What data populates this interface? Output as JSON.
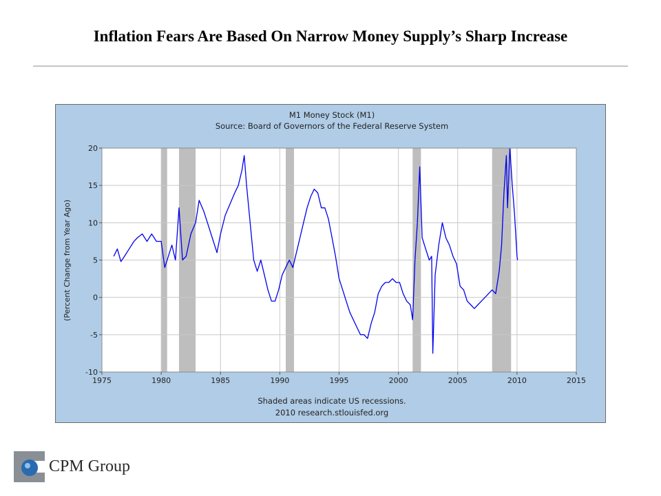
{
  "page": {
    "title": "Inflation Fears Are Based On Narrow Money Supply’s Sharp Increase",
    "logo_text": "CPM Group"
  },
  "colors": {
    "frame_bg": "#b0cce6",
    "plot_bg": "#ffffff",
    "series": "#0000ee",
    "recession": "#bebebe",
    "grid": "#c8c8c8"
  },
  "chart_data": {
    "type": "line",
    "title": "M1 Money Stock (M1)",
    "subtitle": "Source: Board of Governors of the Federal Reserve System",
    "xlabel": "",
    "ylabel": "(Percent Change from Year Ago)",
    "xlim": [
      1975,
      2015
    ],
    "ylim": [
      -10,
      20
    ],
    "x_ticks": [
      1975,
      1980,
      1985,
      1990,
      1995,
      2000,
      2005,
      2010,
      2015
    ],
    "y_ticks": [
      -10,
      -5,
      0,
      5,
      10,
      15,
      20
    ],
    "grid": true,
    "footnote": [
      "Shaded areas indicate US recessions.",
      "2010 research.stlouisfed.org"
    ],
    "recessions": [
      [
        1980.0,
        1980.5
      ],
      [
        1981.5,
        1982.9
      ],
      [
        1990.5,
        1991.2
      ],
      [
        2001.2,
        2001.9
      ],
      [
        2007.9,
        2009.5
      ]
    ],
    "series": [
      {
        "x": [
          1976.0,
          1976.3,
          1976.6,
          1976.9,
          1977.3,
          1977.7,
          1978.0,
          1978.4,
          1978.8,
          1979.2,
          1979.6,
          1980.0,
          1980.3,
          1980.6,
          1980.9,
          1981.2,
          1981.5,
          1981.8,
          1982.1,
          1982.5,
          1982.9,
          1983.2,
          1983.6,
          1983.9,
          1984.3,
          1984.7,
          1985.0,
          1985.4,
          1985.8,
          1986.2,
          1986.5,
          1986.8,
          1987.0,
          1987.2,
          1987.5,
          1987.8,
          1988.1,
          1988.4,
          1988.7,
          1989.0,
          1989.3,
          1989.6,
          1989.9,
          1990.2,
          1990.5,
          1990.8,
          1991.1,
          1991.4,
          1991.7,
          1992.0,
          1992.3,
          1992.6,
          1992.9,
          1993.2,
          1993.5,
          1993.8,
          1994.1,
          1994.4,
          1994.7,
          1995.0,
          1995.3,
          1995.6,
          1995.9,
          1996.2,
          1996.5,
          1996.8,
          1997.1,
          1997.4,
          1997.7,
          1998.0,
          1998.3,
          1998.6,
          1998.9,
          1999.2,
          1999.5,
          1999.8,
          2000.1,
          2000.4,
          2000.7,
          2001.0,
          2001.2,
          2001.4,
          2001.6,
          2001.8,
          2002.0,
          2002.3,
          2002.6,
          2002.8,
          2002.9,
          2003.1,
          2003.4,
          2003.7,
          2004.0,
          2004.3,
          2004.6,
          2004.9,
          2005.2,
          2005.5,
          2005.8,
          2006.1,
          2006.4,
          2006.7,
          2007.0,
          2007.3,
          2007.6,
          2007.9,
          2008.2,
          2008.5,
          2008.7,
          2008.9,
          2009.1,
          2009.2,
          2009.4,
          2009.6,
          2009.8,
          2010.0,
          2010.05
        ],
        "values": [
          5.5,
          6.5,
          4.8,
          5.5,
          6.5,
          7.5,
          8.0,
          8.5,
          7.5,
          8.5,
          7.5,
          7.5,
          4.0,
          5.5,
          7.0,
          5.0,
          12.0,
          5.0,
          5.5,
          8.5,
          10.0,
          13.0,
          11.5,
          10.0,
          8.0,
          6.0,
          8.5,
          11.0,
          12.5,
          14.0,
          15.0,
          17.0,
          19.0,
          15.0,
          10.0,
          5.0,
          3.5,
          5.0,
          3.0,
          1.0,
          -0.5,
          -0.5,
          1.0,
          3.0,
          4.0,
          5.0,
          4.0,
          6.0,
          8.0,
          10.0,
          12.0,
          13.5,
          14.5,
          14.0,
          12.0,
          12.0,
          10.5,
          8.0,
          5.5,
          2.5,
          1.0,
          -0.5,
          -2.0,
          -3.0,
          -4.0,
          -5.0,
          -5.0,
          -5.5,
          -3.5,
          -2.0,
          0.5,
          1.5,
          2.0,
          2.0,
          2.5,
          2.0,
          2.0,
          0.5,
          -0.5,
          -1.0,
          -3.0,
          5.0,
          10.0,
          17.5,
          8.0,
          6.5,
          5.0,
          5.5,
          -7.5,
          3.0,
          7.0,
          10.0,
          8.0,
          7.0,
          5.5,
          4.5,
          1.5,
          1.0,
          -0.5,
          -1.0,
          -1.5,
          -1.0,
          -0.5,
          0.0,
          0.5,
          1.0,
          0.5,
          3.5,
          7.0,
          14.0,
          19.0,
          12.0,
          20.0,
          15.0,
          11.0,
          5.5,
          5.0
        ]
      }
    ]
  }
}
